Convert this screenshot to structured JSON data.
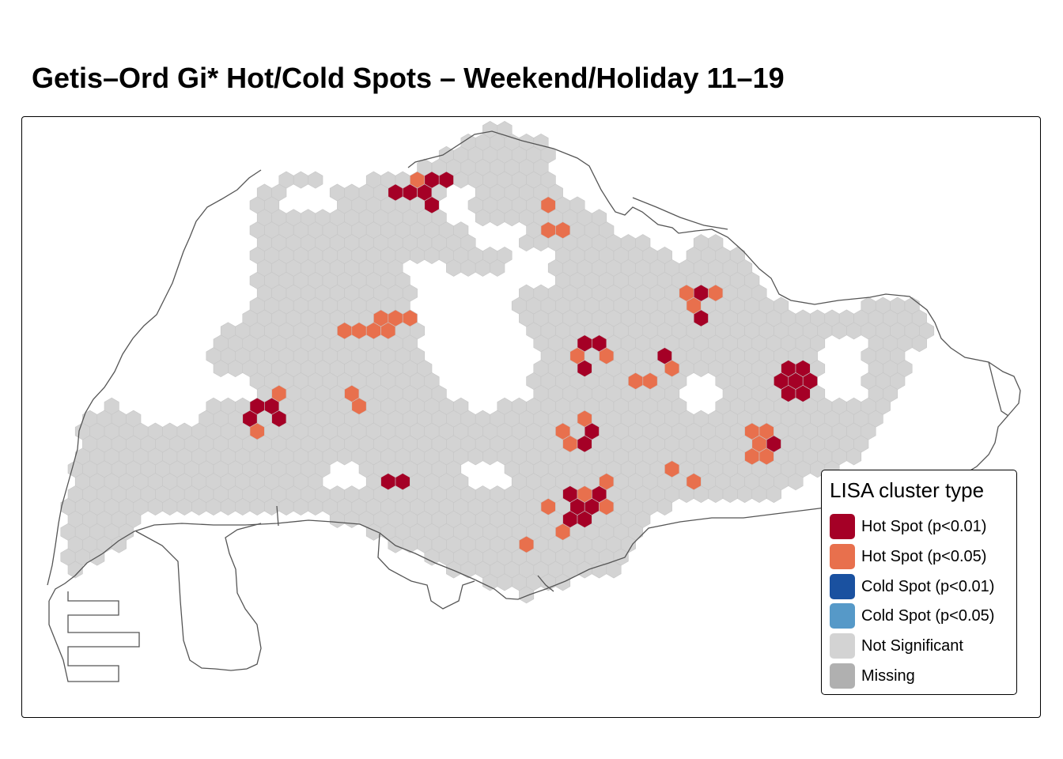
{
  "title": "Getis–Ord Gi* Hot/Cold Spots – Weekend/Holiday 11–19",
  "legend": {
    "title": "LISA cluster type",
    "items": [
      {
        "label": "Hot Spot (p<0.01)",
        "color": "#a50026"
      },
      {
        "label": "Hot Spot (p<0.05)",
        "color": "#e8704d"
      },
      {
        "label": "Cold Spot (p<0.01)",
        "color": "#1a51a0"
      },
      {
        "label": "Cold Spot (p<0.05)",
        "color": "#5699c8"
      },
      {
        "label": "Not Significant",
        "color": "#d3d3d3"
      },
      {
        "label": "Missing",
        "color": "#b0b0b0"
      }
    ]
  },
  "colors": {
    "outline": "#555555",
    "hex_stroke": "#c6c6c6"
  }
}
